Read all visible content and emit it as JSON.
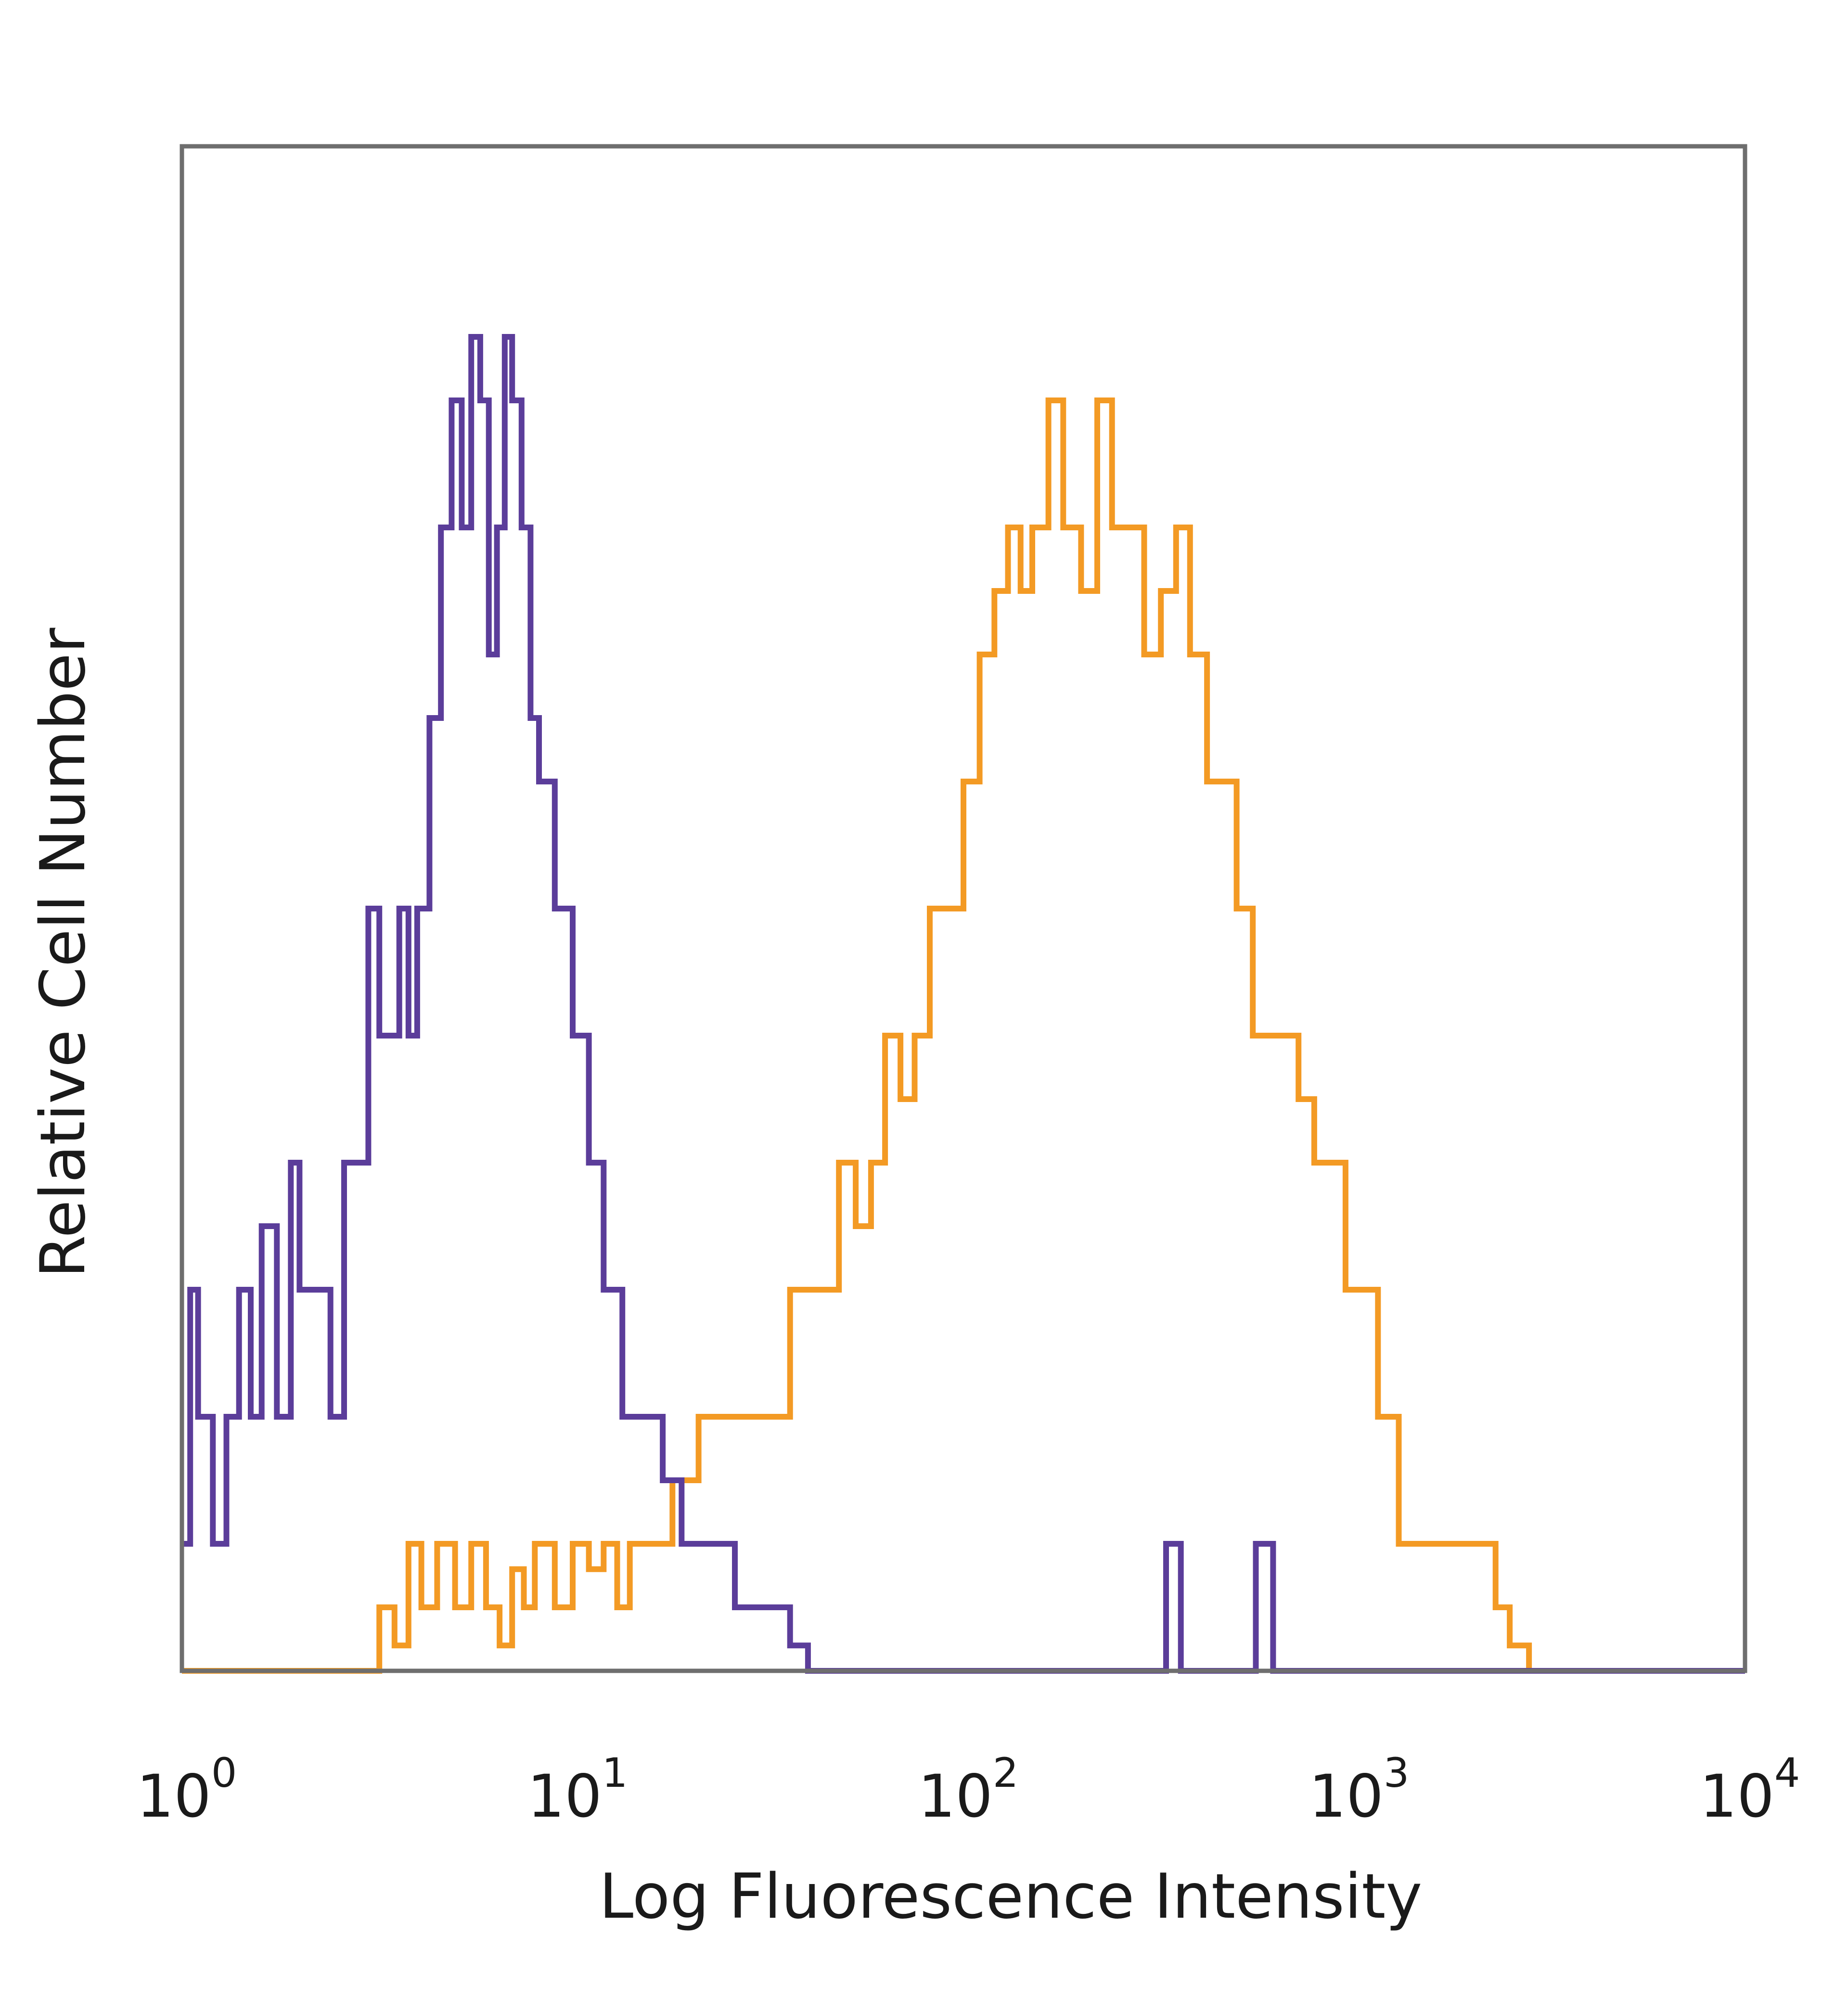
{
  "chart_data": {
    "type": "area",
    "title": "",
    "xlabel": "Log Fluorescence Intensity",
    "ylabel": "Relative Cell Number",
    "xscale": "log",
    "xlim": [
      1,
      10000
    ],
    "ylim": [
      0,
      1.2
    ],
    "grid": false,
    "x_ticks": [
      {
        "base": "10",
        "exp": "0"
      },
      {
        "base": "10",
        "exp": "1"
      },
      {
        "base": "10",
        "exp": "2"
      },
      {
        "base": "10",
        "exp": "3"
      },
      {
        "base": "10",
        "exp": "4"
      }
    ],
    "series": [
      {
        "color": "#5b3d9a",
        "x": [
          1.0,
          1.05,
          1.1,
          1.2,
          1.3,
          1.4,
          1.5,
          1.6,
          1.75,
          1.9,
          2.0,
          2.2,
          2.4,
          2.6,
          2.8,
          3.0,
          3.2,
          3.4,
          3.6,
          3.8,
          4.0,
          4.3,
          4.6,
          4.9,
          5.2,
          5.5,
          5.8,
          6.1,
          6.4,
          6.7,
          7.0,
          7.4,
          7.8,
          8.2,
          8.6,
          9.0,
          9.5,
          10.0,
          10.5,
          11.0,
          11.5,
          12.0,
          12.7,
          13.4,
          14.2,
          15.0,
          16.0,
          17.0,
          18.0,
          19.0,
          20.0,
          21.5,
          23.0,
          24.5,
          26.0,
          28.0,
          30.0,
          32.0,
          34.0,
          36.0,
          38.0,
          40.0,
          45.0,
          100.0,
          200.0,
          300.0,
          330.0,
          345.0,
          360.0,
          500.0,
          560.0,
          590.0,
          620.0,
          1000.0,
          10000.0
        ],
        "values": [
          0.1,
          0.3,
          0.2,
          0.1,
          0.2,
          0.3,
          0.2,
          0.35,
          0.2,
          0.4,
          0.3,
          0.3,
          0.2,
          0.4,
          0.4,
          0.6,
          0.5,
          0.5,
          0.6,
          0.5,
          0.6,
          0.75,
          0.9,
          1.0,
          0.9,
          1.05,
          1.0,
          0.8,
          0.9,
          1.05,
          1.0,
          0.9,
          0.75,
          0.7,
          0.7,
          0.6,
          0.6,
          0.5,
          0.5,
          0.4,
          0.4,
          0.3,
          0.3,
          0.2,
          0.2,
          0.2,
          0.2,
          0.15,
          0.15,
          0.1,
          0.1,
          0.1,
          0.1,
          0.1,
          0.05,
          0.05,
          0.05,
          0.05,
          0.05,
          0.02,
          0.02,
          0.0,
          0.0,
          0.0,
          0.0,
          0.0,
          0.1,
          0.1,
          0.0,
          0.0,
          0.1,
          0.1,
          0.0,
          0.0,
          0.0
        ]
      },
      {
        "color": "#f39a24",
        "x": [
          1.0,
          3.0,
          3.2,
          3.5,
          3.8,
          4.1,
          4.5,
          5.0,
          5.5,
          6.0,
          6.5,
          7.0,
          7.5,
          8.0,
          9.0,
          10.0,
          11.0,
          12.0,
          13.0,
          14.0,
          15.0,
          16.5,
          18.0,
          19.5,
          21.0,
          23.0,
          25.0,
          27.5,
          30.0,
          33.0,
          36.0,
          40.0,
          44.0,
          48.0,
          53.0,
          58.0,
          63.0,
          69.0,
          75.0,
          82.0,
          90.0,
          100.0,
          110.0,
          120.0,
          130.0,
          140.0,
          150.0,
          165.0,
          180.0,
          200.0,
          220.0,
          240.0,
          265.0,
          290.0,
          320.0,
          350.0,
          380.0,
          420.0,
          460.0,
          500.0,
          550.0,
          600.0,
          660.0,
          720.0,
          790.0,
          870.0,
          950.0,
          1050.0,
          1150.0,
          1300.0,
          1500.0,
          1700.0,
          1900.0,
          2100.0,
          2300.0,
          2500.0,
          2800.0,
          3200.0,
          10000.0
        ],
        "values": [
          0.0,
          0.0,
          0.05,
          0.02,
          0.1,
          0.05,
          0.1,
          0.05,
          0.1,
          0.05,
          0.02,
          0.08,
          0.05,
          0.1,
          0.05,
          0.1,
          0.08,
          0.1,
          0.05,
          0.1,
          0.1,
          0.1,
          0.15,
          0.15,
          0.2,
          0.2,
          0.2,
          0.2,
          0.2,
          0.2,
          0.3,
          0.3,
          0.3,
          0.4,
          0.35,
          0.4,
          0.5,
          0.45,
          0.5,
          0.6,
          0.6,
          0.7,
          0.8,
          0.85,
          0.9,
          0.85,
          0.9,
          1.0,
          0.9,
          0.85,
          1.0,
          0.9,
          0.9,
          0.8,
          0.85,
          0.9,
          0.8,
          0.7,
          0.7,
          0.6,
          0.5,
          0.5,
          0.5,
          0.45,
          0.4,
          0.4,
          0.3,
          0.3,
          0.2,
          0.1,
          0.1,
          0.1,
          0.1,
          0.1,
          0.05,
          0.02,
          0.0,
          0.0,
          0.0
        ]
      }
    ]
  }
}
